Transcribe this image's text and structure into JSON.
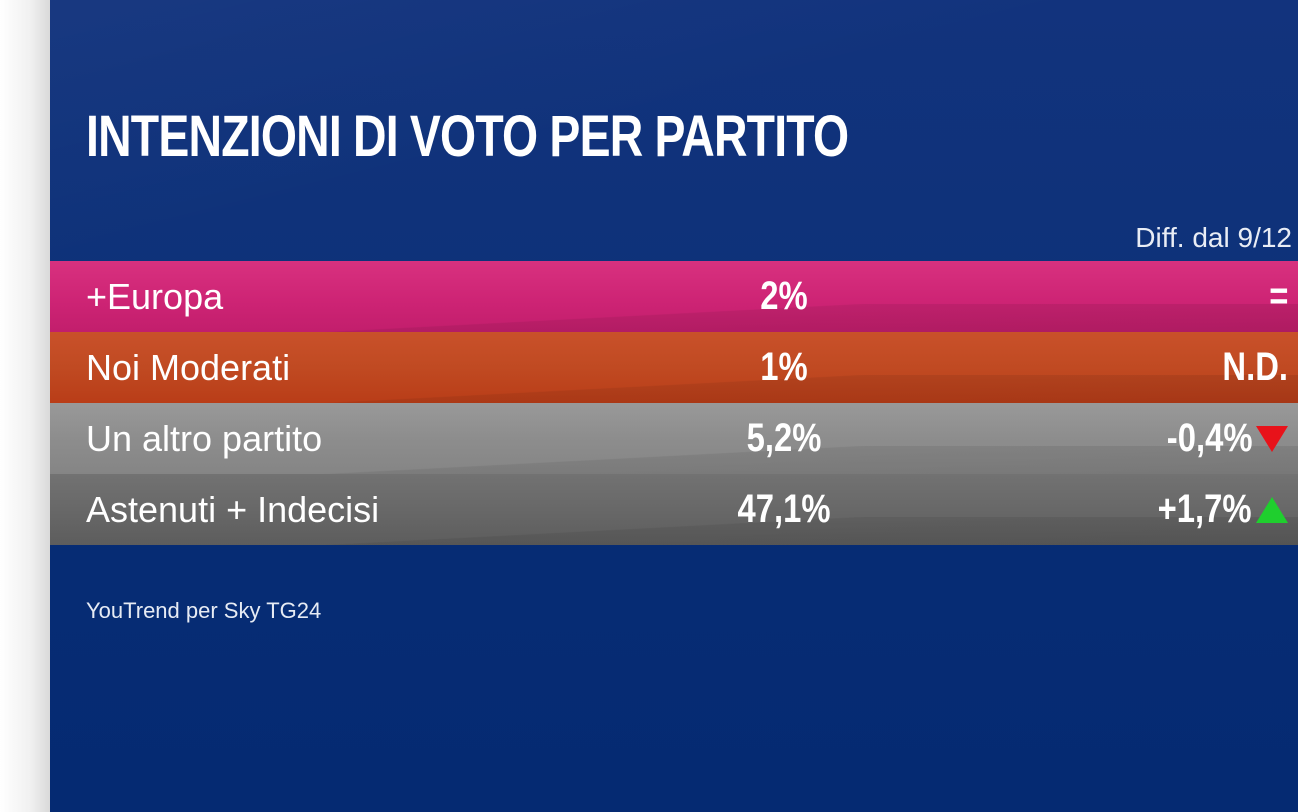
{
  "chart_data": {
    "type": "table",
    "title": "INTENZIONI DI VOTO PER PARTITO",
    "diff_header": "Diff. dal 9/12",
    "rows": [
      {
        "name": "+Europa",
        "value_label": "2%",
        "value": 2,
        "diff_label": "=",
        "trend": "none",
        "color": "#ce2475"
      },
      {
        "name": "Noi Moderati",
        "value_label": "1%",
        "value": 1,
        "diff_label": "N.D.",
        "trend": "none",
        "color": "#c04a22"
      },
      {
        "name": "Un altro partito",
        "value_label": "5,2%",
        "value": 5.2,
        "diff_label": "-0,4%",
        "trend": "down",
        "color": "#8d8d8d"
      },
      {
        "name": "Astenuti + Indecisi",
        "value_label": "47,1%",
        "value": 47.1,
        "diff_label": "+1,7%",
        "trend": "up",
        "color": "#686868"
      }
    ],
    "source": "YouTrend per Sky TG24"
  },
  "colors": {
    "background": "#0a2f77",
    "trend_down": "#e8121a",
    "trend_up": "#1fcf2e",
    "text": "#ffffff"
  },
  "icons": {
    "trend_down": "red-down-triangle-icon",
    "trend_up": "green-up-triangle-icon"
  }
}
